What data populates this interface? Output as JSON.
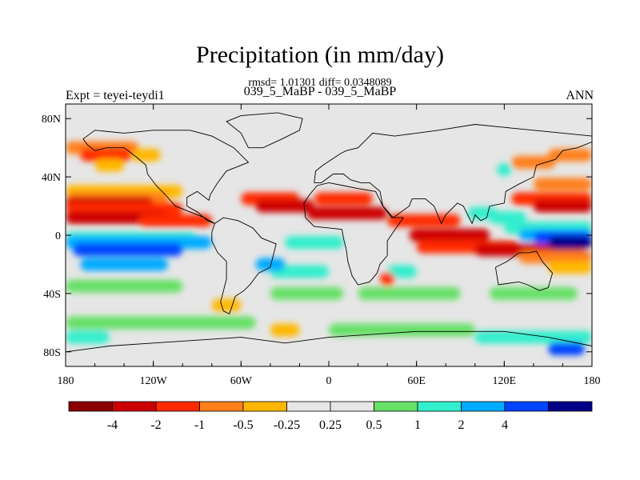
{
  "chart_data": {
    "type": "heatmap",
    "title": "Precipitation (in mm/day)",
    "stats_line": "rmsd= 1.01301 diff= 0.0348089",
    "subtitle": "039_5_MaBP - 039_5_MaBP",
    "left_label": "Expt = teyei-teydi1",
    "right_label": "ANN",
    "x_range": [
      -180,
      180
    ],
    "y_range": [
      -90,
      90
    ],
    "x_ticks": [
      {
        "value": -180,
        "label": "180"
      },
      {
        "value": -120,
        "label": "120W"
      },
      {
        "value": -60,
        "label": "60W"
      },
      {
        "value": 0,
        "label": "0"
      },
      {
        "value": 60,
        "label": "60E"
      },
      {
        "value": 120,
        "label": "120E"
      },
      {
        "value": 180,
        "label": "180"
      }
    ],
    "y_ticks": [
      {
        "value": 80,
        "label": "80N"
      },
      {
        "value": 40,
        "label": "40N"
      },
      {
        "value": 0,
        "label": "0"
      },
      {
        "value": -40,
        "label": "40S"
      },
      {
        "value": -80,
        "label": "80S"
      }
    ],
    "colorbar": {
      "colors": [
        "#8b0000",
        "#cd0000",
        "#ff2a00",
        "#ff7f1a",
        "#ffb700",
        "#e6e6e6",
        "#e6e6e6",
        "#66e066",
        "#33eecc",
        "#00aaff",
        "#0044ff",
        "#000088"
      ],
      "labels": [
        "-4",
        "-2",
        "-1",
        "-0.5",
        "-0.25",
        "0.25",
        "0.5",
        "1",
        "2",
        "4"
      ]
    },
    "bands": [
      {
        "lat": 60,
        "lon_from": -180,
        "lon_to": -130,
        "level": 3
      },
      {
        "lat": 55,
        "lon_from": -170,
        "lon_to": -135,
        "level": 2
      },
      {
        "lat": 55,
        "lon_from": -135,
        "lon_to": -115,
        "level": 4
      },
      {
        "lat": 48,
        "lon_from": -160,
        "lon_to": -140,
        "level": 4
      },
      {
        "lat": 30,
        "lon_from": -180,
        "lon_to": -100,
        "level": 4
      },
      {
        "lat": 25,
        "lon_from": -180,
        "lon_to": -110,
        "level": 3
      },
      {
        "lat": 22,
        "lon_from": -180,
        "lon_to": -120,
        "level": 1
      },
      {
        "lat": 18,
        "lon_from": -180,
        "lon_to": -100,
        "level": 2
      },
      {
        "lat": 12,
        "lon_from": -180,
        "lon_to": -110,
        "level": 1
      },
      {
        "lat": 10,
        "lon_from": -130,
        "lon_to": -80,
        "level": 2
      },
      {
        "lat": 25,
        "lon_from": -60,
        "lon_to": -20,
        "level": 2
      },
      {
        "lat": 20,
        "lon_from": -50,
        "lon_to": -10,
        "level": 1
      },
      {
        "lat": 25,
        "lon_from": -10,
        "lon_to": 30,
        "level": 2
      },
      {
        "lat": 15,
        "lon_from": -15,
        "lon_to": 40,
        "level": 1
      },
      {
        "lat": 10,
        "lon_from": 40,
        "lon_to": 90,
        "level": 2
      },
      {
        "lat": 0,
        "lon_from": 55,
        "lon_to": 110,
        "level": 1
      },
      {
        "lat": -8,
        "lon_from": 60,
        "lon_to": 130,
        "level": 2
      },
      {
        "lat": -10,
        "lon_from": 100,
        "lon_to": 175,
        "level": 1
      },
      {
        "lat": -15,
        "lon_from": 130,
        "lon_to": 180,
        "level": 3
      },
      {
        "lat": -22,
        "lon_from": 150,
        "lon_to": 180,
        "level": 4
      },
      {
        "lat": 25,
        "lon_from": 125,
        "lon_to": 180,
        "level": 2
      },
      {
        "lat": 20,
        "lon_from": 140,
        "lon_to": 180,
        "level": 1
      },
      {
        "lat": 35,
        "lon_from": 140,
        "lon_to": 180,
        "level": 3
      },
      {
        "lat": 50,
        "lon_from": 125,
        "lon_to": 155,
        "level": 3
      },
      {
        "lat": 55,
        "lon_from": 150,
        "lon_to": 180,
        "level": 3
      },
      {
        "lat": 12,
        "lon_from": 110,
        "lon_to": 135,
        "level": 8
      },
      {
        "lat": 5,
        "lon_from": 120,
        "lon_to": 180,
        "level": 8
      },
      {
        "lat": 0,
        "lon_from": 130,
        "lon_to": 180,
        "level": 9
      },
      {
        "lat": -2,
        "lon_from": 140,
        "lon_to": 180,
        "level": 10
      },
      {
        "lat": -5,
        "lon_from": 150,
        "lon_to": 180,
        "level": 11
      },
      {
        "lat": -2,
        "lon_from": -180,
        "lon_to": -90,
        "level": 8
      },
      {
        "lat": -5,
        "lon_from": -180,
        "lon_to": -80,
        "level": 9
      },
      {
        "lat": -10,
        "lon_from": -175,
        "lon_to": -100,
        "level": 10
      },
      {
        "lat": -20,
        "lon_from": -170,
        "lon_to": -110,
        "level": 9
      },
      {
        "lat": -35,
        "lon_from": -180,
        "lon_to": -100,
        "level": 7
      },
      {
        "lat": -25,
        "lon_from": -40,
        "lon_to": 0,
        "level": 8
      },
      {
        "lat": -40,
        "lon_from": -40,
        "lon_to": 10,
        "level": 7
      },
      {
        "lat": -20,
        "lon_from": -50,
        "lon_to": -30,
        "level": 9
      },
      {
        "lat": -5,
        "lon_from": -30,
        "lon_to": 10,
        "level": 8
      },
      {
        "lat": -40,
        "lon_from": 20,
        "lon_to": 90,
        "level": 7
      },
      {
        "lat": -25,
        "lon_from": 40,
        "lon_to": 60,
        "level": 8
      },
      {
        "lat": -40,
        "lon_from": 110,
        "lon_to": 170,
        "level": 7
      },
      {
        "lat": -60,
        "lon_from": -180,
        "lon_to": -50,
        "level": 7
      },
      {
        "lat": -65,
        "lon_from": 0,
        "lon_to": 100,
        "level": 7
      },
      {
        "lat": -70,
        "lon_from": 100,
        "lon_to": 180,
        "level": 8
      },
      {
        "lat": -78,
        "lon_from": 150,
        "lon_to": 175,
        "level": 10
      },
      {
        "lat": -48,
        "lon_from": -80,
        "lon_to": -60,
        "level": 4
      },
      {
        "lat": -65,
        "lon_from": -40,
        "lon_to": -20,
        "level": 4
      },
      {
        "lat": -70,
        "lon_from": -180,
        "lon_to": -150,
        "level": 8
      },
      {
        "lat": -30,
        "lon_from": 35,
        "lon_to": 45,
        "level": 2
      },
      {
        "lat": 15,
        "lon_from": 95,
        "lon_to": 115,
        "level": 8
      },
      {
        "lat": 45,
        "lon_from": 115,
        "lon_to": 125,
        "level": 8
      }
    ]
  }
}
